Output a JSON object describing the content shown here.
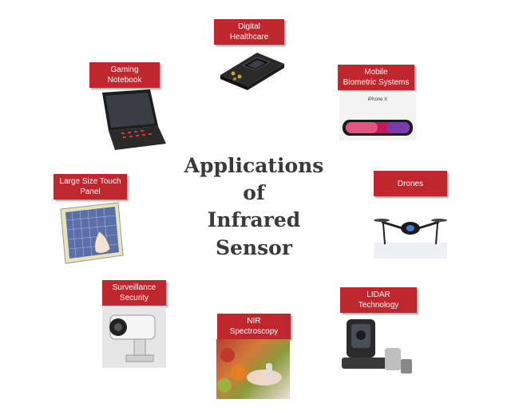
{
  "title": {
    "line1": "Applications",
    "line2": "of",
    "line3": "Infrared",
    "line4": "Sensor"
  },
  "nodes": [
    {
      "id": "digital-healthcare",
      "label": "Digital\nHealthcare"
    },
    {
      "id": "mobile-biometric",
      "label": "Mobile\nBiometric Systems"
    },
    {
      "id": "drones",
      "label": "Drones"
    },
    {
      "id": "lidar",
      "label": "LIDAR\nTechnology"
    },
    {
      "id": "nir",
      "label": "NIR\nSpectroscopy"
    },
    {
      "id": "surveillance",
      "label": "Surveillance\nSecurity"
    },
    {
      "id": "touch-panel",
      "label": "Large Size Touch\nPanel"
    },
    {
      "id": "gaming-notebook",
      "label": "Gaming\nNotebook"
    }
  ],
  "phone_caption": "iPhone X",
  "accent": "#c0262d"
}
